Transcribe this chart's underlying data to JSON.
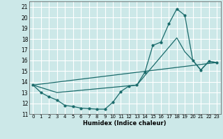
{
  "xlabel": "Humidex (Indice chaleur)",
  "xlim": [
    -0.5,
    23.5
  ],
  "ylim": [
    11,
    21.5
  ],
  "xticks": [
    0,
    1,
    2,
    3,
    4,
    5,
    6,
    7,
    8,
    9,
    10,
    11,
    12,
    13,
    14,
    15,
    16,
    17,
    18,
    19,
    20,
    21,
    22,
    23
  ],
  "yticks": [
    11,
    12,
    13,
    14,
    15,
    16,
    17,
    18,
    19,
    20,
    21
  ],
  "bg_color": "#cce8e8",
  "grid_color": "#ffffff",
  "line_color": "#1a6b6b",
  "line1_x": [
    0,
    1,
    2,
    3,
    4,
    5,
    6,
    7,
    8,
    9,
    10,
    11,
    12,
    13,
    14,
    15,
    16,
    17,
    18,
    19,
    20,
    21,
    22,
    23
  ],
  "line1_y": [
    13.7,
    13.0,
    12.6,
    12.3,
    11.8,
    11.7,
    11.55,
    11.5,
    11.45,
    11.45,
    12.1,
    13.1,
    13.6,
    13.7,
    14.9,
    17.4,
    17.7,
    19.4,
    20.8,
    20.2,
    16.0,
    15.1,
    15.9,
    15.8
  ],
  "line2_x": [
    0,
    23
  ],
  "line2_y": [
    13.7,
    15.8
  ],
  "line3_x": [
    0,
    3,
    13,
    18,
    19,
    20,
    21,
    22,
    23
  ],
  "line3_y": [
    13.7,
    13.0,
    13.7,
    18.1,
    16.8,
    16.0,
    15.1,
    15.9,
    15.8
  ]
}
